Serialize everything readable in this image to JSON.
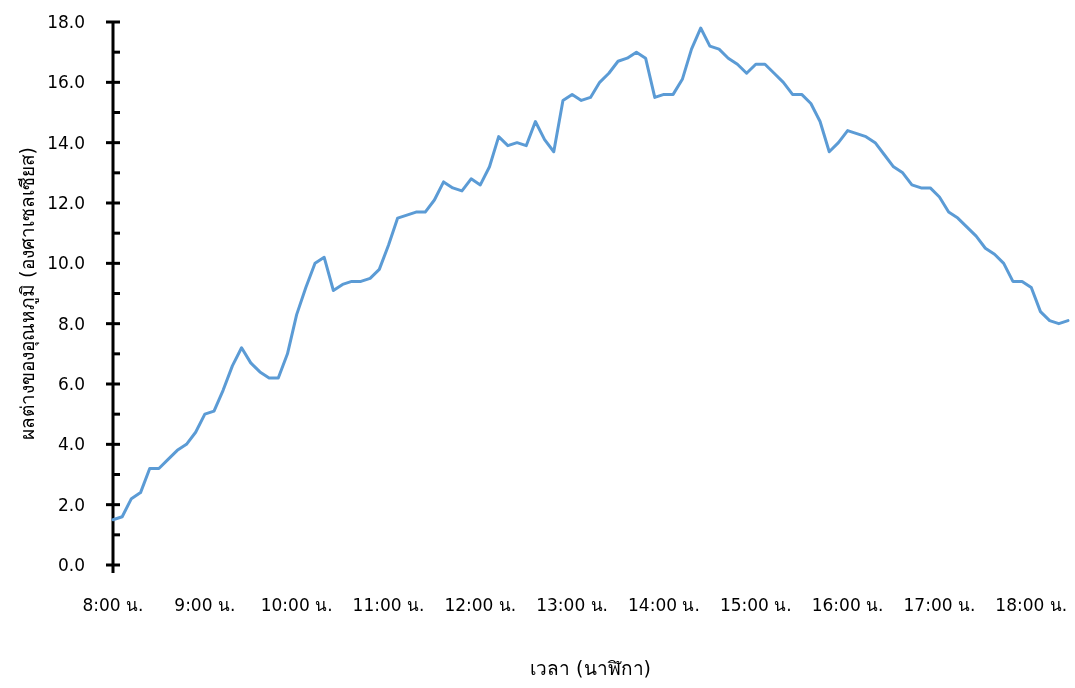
{
  "chart_data": {
    "type": "line",
    "xlabel": "เวลา (นาฬิกา)",
    "ylabel": "ผลต่างของอุณหภูมิ (องศาเซลเซียส)",
    "categories": [
      "8:00 น.",
      null,
      null,
      null,
      null,
      null,
      null,
      null,
      null,
      null,
      "9:00 น.",
      null,
      null,
      null,
      null,
      null,
      null,
      null,
      null,
      null,
      "10:00 น.",
      null,
      null,
      null,
      null,
      null,
      null,
      null,
      null,
      null,
      "11:00 น.",
      null,
      null,
      null,
      null,
      null,
      null,
      null,
      null,
      null,
      "12:00 น.",
      null,
      null,
      null,
      null,
      null,
      null,
      null,
      null,
      null,
      "13:00 น.",
      null,
      null,
      null,
      null,
      null,
      null,
      null,
      null,
      null,
      "14:00 น.",
      null,
      null,
      null,
      null,
      null,
      null,
      null,
      null,
      null,
      "15:00 น.",
      null,
      null,
      null,
      null,
      null,
      null,
      null,
      null,
      null,
      "16:00 น.",
      null,
      null,
      null,
      null,
      null,
      null,
      null,
      null,
      null,
      "17:00 น.",
      null,
      null,
      null,
      null,
      null,
      null,
      null,
      null,
      null,
      "18:00 น.",
      null,
      null,
      null,
      null
    ],
    "ylim": [
      0,
      18
    ],
    "yticks": [
      {
        "value": 0,
        "label": "0.0"
      },
      {
        "value": 1,
        "label": null
      },
      {
        "value": 2,
        "label": "2.0"
      },
      {
        "value": 3,
        "label": null
      },
      {
        "value": 4,
        "label": "4.0"
      },
      {
        "value": 5,
        "label": null
      },
      {
        "value": 6,
        "label": "6.0"
      },
      {
        "value": 7,
        "label": null
      },
      {
        "value": 8,
        "label": "8.0"
      },
      {
        "value": 9,
        "label": null
      },
      {
        "value": 10,
        "label": "10.0"
      },
      {
        "value": 11,
        "label": null
      },
      {
        "value": 12,
        "label": "12.0"
      },
      {
        "value": 13,
        "label": null
      },
      {
        "value": 14,
        "label": "14.0"
      },
      {
        "value": 15,
        "label": null
      },
      {
        "value": 16,
        "label": "16.0"
      },
      {
        "value": 17,
        "label": null
      },
      {
        "value": 18,
        "label": "18.0"
      }
    ],
    "marker": "none",
    "line_style": "solid",
    "series": [
      {
        "color": "#5b9bd5",
        "values": [
          1.5,
          1.6,
          2.2,
          2.4,
          3.2,
          3.2,
          3.5,
          3.8,
          4.0,
          4.4,
          5.0,
          5.1,
          5.8,
          6.6,
          7.2,
          6.7,
          6.4,
          6.2,
          6.2,
          7.0,
          8.3,
          9.2,
          10.0,
          10.2,
          9.1,
          9.3,
          9.4,
          9.4,
          9.5,
          9.8,
          10.6,
          11.5,
          11.6,
          11.7,
          11.7,
          12.1,
          12.7,
          12.5,
          12.4,
          12.8,
          12.6,
          13.2,
          14.2,
          13.9,
          14.0,
          13.9,
          14.7,
          14.1,
          13.7,
          15.4,
          15.6,
          15.4,
          15.5,
          16.0,
          16.3,
          16.7,
          16.8,
          17.0,
          16.8,
          15.5,
          15.6,
          15.6,
          16.1,
          17.1,
          17.8,
          17.2,
          17.1,
          16.8,
          16.6,
          16.3,
          16.6,
          16.6,
          16.3,
          16.0,
          15.6,
          15.6,
          15.3,
          14.7,
          13.7,
          14.0,
          14.4,
          14.3,
          14.2,
          14.0,
          13.6,
          13.2,
          13.0,
          12.6,
          12.5,
          12.5,
          12.2,
          11.7,
          11.5,
          11.2,
          10.9,
          10.5,
          10.3,
          10.0,
          9.4,
          9.4,
          9.2,
          8.4,
          8.1,
          8.0,
          8.1
        ]
      }
    ]
  }
}
